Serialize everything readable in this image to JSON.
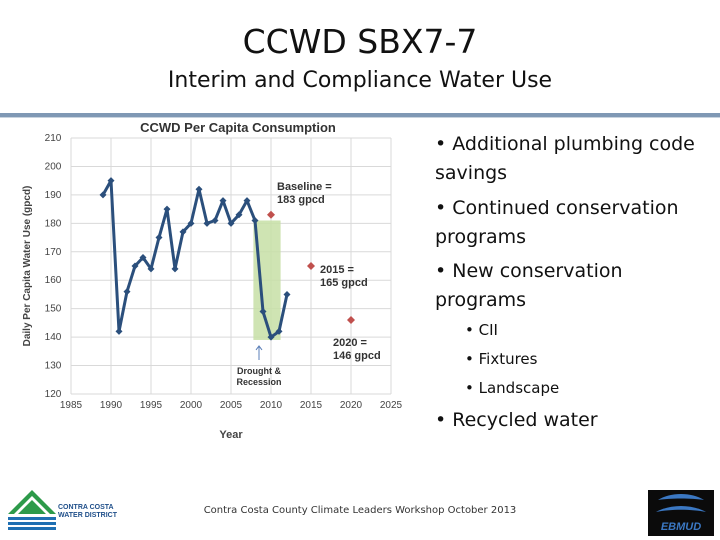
{
  "slide": {
    "title": "CCWD SBX7-7",
    "subtitle": "Interim and Compliance Water Use",
    "footer": "Contra Costa County Climate Leaders Workshop October 2013"
  },
  "bullets": [
    {
      "text": "• Additional plumbing code savings",
      "level": 1
    },
    {
      "text": "• Continued conservation programs",
      "level": 1
    },
    {
      "text": "• New conservation programs",
      "level": 1
    },
    {
      "text": "• CII",
      "level": 2
    },
    {
      "text": "• Fixtures",
      "level": 2
    },
    {
      "text": "• Landscape",
      "level": 2
    },
    {
      "text": "• Recycled water",
      "level": 1
    }
  ],
  "logos": {
    "left_lines": [
      "CONTRA COSTA",
      "WATER DISTRICT"
    ],
    "right_text": "EBMUD"
  },
  "colors": {
    "series": "#2b4f7c",
    "target": "#c0504d",
    "drought_band": "#c7dfa6",
    "grid": "#d9d9d9"
  },
  "chart_data": {
    "type": "line",
    "title": "CCWD Per Capita Consumption",
    "xlabel": "Year",
    "ylabel": "Daily Per Capita Water Use (gpcd)",
    "xlim": [
      1985,
      2025
    ],
    "ylim": [
      120,
      210
    ],
    "xticks": [
      1985,
      1990,
      1995,
      2000,
      2005,
      2010,
      2015,
      2020,
      2025
    ],
    "yticks": [
      120,
      130,
      140,
      150,
      160,
      170,
      180,
      190,
      200,
      210
    ],
    "grid": true,
    "series": [
      {
        "points": [
          [
            1989,
            190
          ],
          [
            1990,
            195
          ],
          [
            1991,
            142
          ],
          [
            1992,
            156
          ],
          [
            1993,
            165
          ],
          [
            1994,
            168
          ],
          [
            1995,
            164
          ],
          [
            1996,
            175
          ],
          [
            1997,
            185
          ],
          [
            1998,
            164
          ],
          [
            1999,
            177
          ],
          [
            2000,
            180
          ],
          [
            2001,
            192
          ],
          [
            2002,
            180
          ],
          [
            2003,
            181
          ],
          [
            2004,
            188
          ],
          [
            2005,
            180
          ],
          [
            2006,
            183
          ],
          [
            2007,
            188
          ],
          [
            2008,
            181
          ],
          [
            2009,
            149
          ],
          [
            2010,
            140
          ],
          [
            2011,
            142
          ],
          [
            2012,
            155
          ]
        ]
      }
    ],
    "targets": [
      {
        "label": "Baseline = 183 gpcd",
        "x": 2010,
        "y": 183
      },
      {
        "label": "2015 = 165 gpcd",
        "x": 2015,
        "y": 165
      },
      {
        "label": "2020 = 146 gpcd",
        "x": 2020,
        "y": 146
      }
    ],
    "band": {
      "x": [
        2007.8,
        2011.2
      ],
      "y": [
        139,
        181
      ],
      "label": "Drought & Recession"
    }
  }
}
